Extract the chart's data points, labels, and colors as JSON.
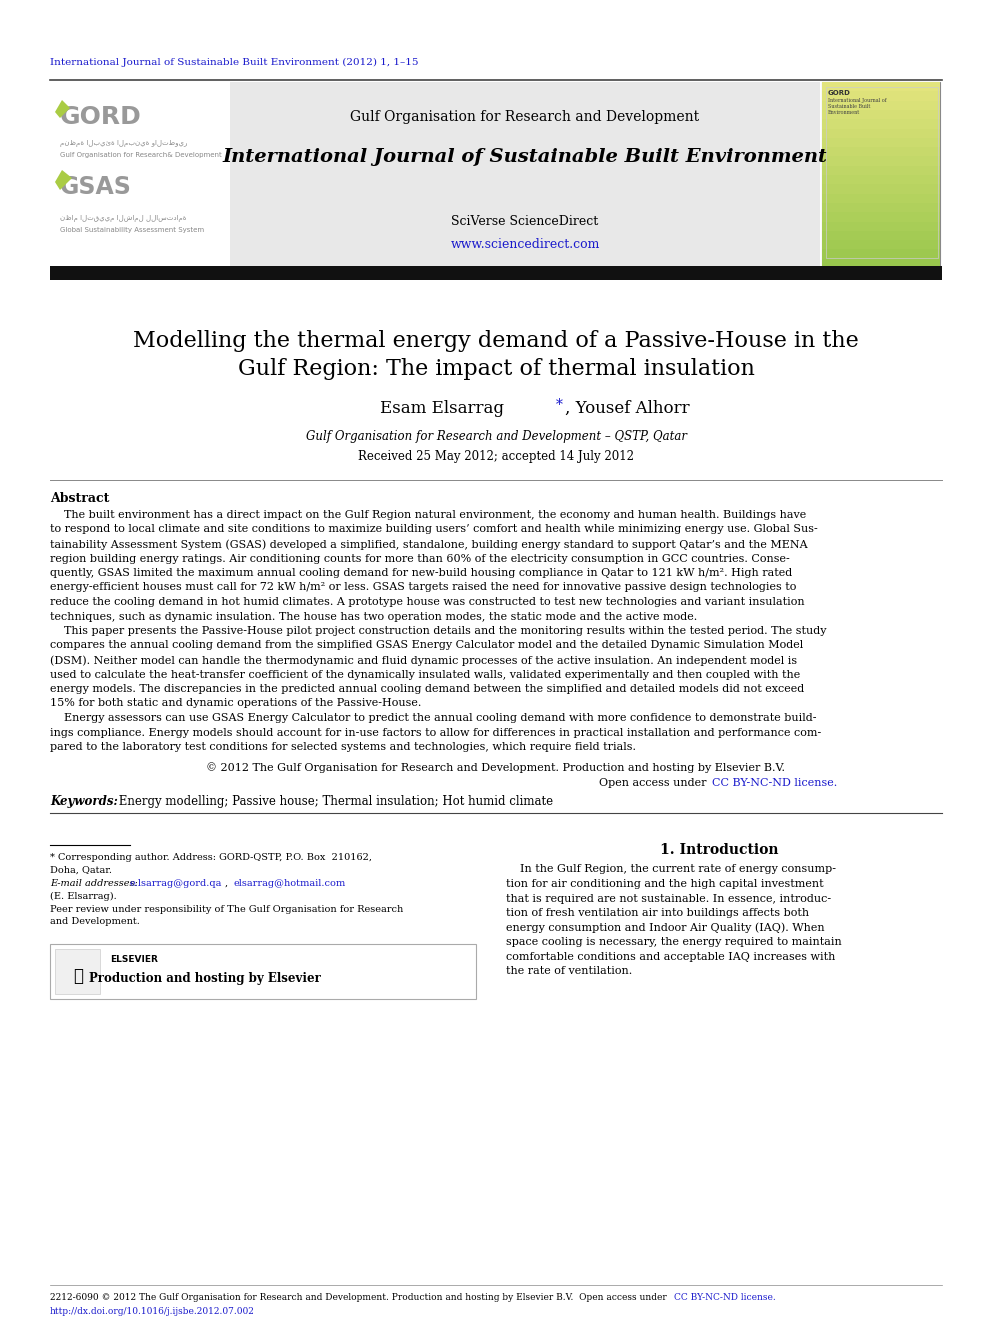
{
  "journal_ref": "International Journal of Sustainable Built Environment (2012) 1, 1–15",
  "journal_ref_color": "#1a1acc",
  "header_center_text1": "Gulf Organisation for Research and Development",
  "header_center_text2": "International Journal of Sustainable Built Environment",
  "header_sciverse": "SciVerse ScienceDirect",
  "header_url": "www.sciencedirect.com",
  "header_url_color": "#1a1acc",
  "black_bar_color": "#111111",
  "paper_title_line1": "Modelling the thermal energy demand of a Passive-House in the",
  "paper_title_line2": "Gulf Region: The impact of thermal insulation",
  "author_main": "Esam Elsarrag",
  "author_star": "*",
  "author_rest": ", Yousef Alhorr",
  "affiliation": "Gulf Organisation for Research and Development – QSTP, Qatar",
  "received": "Received 25 May 2012; accepted 14 July 2012",
  "abstract_title": "Abstract",
  "copyright_text": "© 2012 The Gulf Organisation for Research and Development. Production and hosting by Elsevier B.V.",
  "open_access_pre": "Open access under ",
  "open_access_link": "CC BY-NC-ND license.",
  "open_access_color": "#1a1acc",
  "keywords_label": "Keywords: ",
  "keywords": " Energy modelling; Passive house; Thermal insulation; Hot humid climate",
  "section_title": "1. Introduction",
  "footnote_line1": "* Corresponding author. Address: GORD-QSTP, P.O. Box  210162,",
  "footnote_line2": "Doha, Qatar.",
  "footnote_email_label": "E-mail addresses:",
  "footnote_email1": "e.lsarrag@gord.qa",
  "footnote_comma": ",",
  "footnote_email2": "elsarrag@hotmail.com",
  "footnote_email_color": "#1a1acc",
  "footnote_name": "(E. Elsarrag).",
  "footnote_peer1": "Peer review under responsibility of The Gulf Organisation for Research",
  "footnote_peer2": "and Development.",
  "footer_text": "2212-6090 © 2012 The Gulf Organisation for Research and Development. Production and hosting by Elsevier B.V.  Open access under ",
  "footer_cc": "CC BY-NC-ND license.",
  "footer_cc_color": "#1a1acc",
  "footer_doi": "http://dx.doi.org/10.1016/j.ijsbe.2012.07.002",
  "footer_doi_color": "#1a1acc",
  "bg_color": "#ffffff"
}
